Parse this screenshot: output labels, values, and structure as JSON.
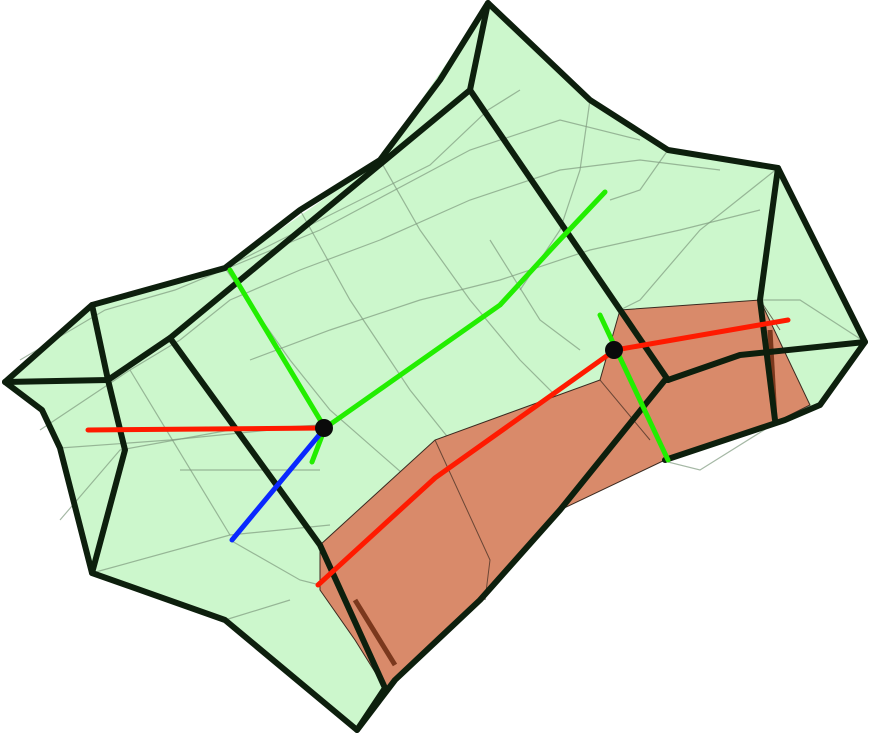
{
  "colors": {
    "background": "#ffffff",
    "hull_fill": "#ccf7cc",
    "hull_edge": "#0d1f0d",
    "mesh_line": "#7f9a7f",
    "slab_fill": "#d98a6a",
    "slab_edge": "#3a2a20",
    "curve_red": "#ff1a00",
    "curve_green": "#22ee00",
    "axis_blue": "#0a28ff",
    "vertex_dot": "#0a0a0a"
  },
  "objects": [
    "polyhedral-hull",
    "inner-slab",
    "red-curves",
    "green-curves",
    "blue-axis",
    "vertex-points"
  ]
}
